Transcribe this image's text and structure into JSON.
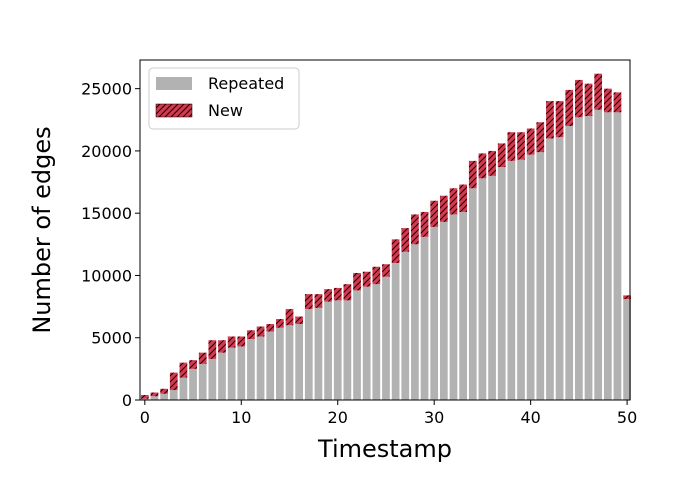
{
  "chart_data": {
    "type": "bar",
    "stacked": true,
    "xlabel": "Timestamp",
    "ylabel": "Number of edges",
    "xlim": [
      -0.5,
      50.3
    ],
    "ylim": [
      0,
      27300
    ],
    "xticks": [
      0,
      10,
      20,
      30,
      40,
      50
    ],
    "yticks": [
      0,
      5000,
      10000,
      15000,
      20000,
      25000
    ],
    "legend": {
      "position": "top-left"
    },
    "colors": {
      "repeated": "#b2b2b2",
      "new": "#d6384f",
      "hatch": "#000000"
    },
    "x": [
      0,
      1,
      2,
      3,
      4,
      5,
      6,
      7,
      8,
      9,
      10,
      11,
      12,
      13,
      14,
      15,
      16,
      17,
      18,
      19,
      20,
      21,
      22,
      23,
      24,
      25,
      26,
      27,
      28,
      29,
      30,
      31,
      32,
      33,
      34,
      35,
      36,
      37,
      38,
      39,
      40,
      41,
      42,
      43,
      44,
      45,
      46,
      47,
      48,
      49,
      50
    ],
    "series": [
      {
        "name": "Repeated",
        "values": [
          100,
          300,
          500,
          800,
          1800,
          2500,
          2900,
          3300,
          3800,
          4200,
          4300,
          4900,
          5100,
          5500,
          5800,
          6000,
          6100,
          7300,
          7400,
          7900,
          8000,
          8000,
          8800,
          9100,
          9300,
          9900,
          11000,
          11900,
          12500,
          13100,
          13900,
          14300,
          14900,
          15100,
          17000,
          17800,
          18000,
          18700,
          19200,
          19300,
          19700,
          19900,
          21000,
          21100,
          22000,
          22700,
          22800,
          23300,
          23100,
          23100,
          8100
        ]
      },
      {
        "name": "New",
        "values": [
          300,
          300,
          400,
          1400,
          1200,
          700,
          900,
          1500,
          1000,
          900,
          800,
          700,
          800,
          600,
          700,
          1300,
          600,
          1200,
          1100,
          1000,
          1000,
          1300,
          1400,
          1200,
          1400,
          1000,
          1900,
          1900,
          2400,
          2000,
          2100,
          2100,
          2100,
          2200,
          2200,
          2000,
          2000,
          1900,
          2300,
          2200,
          2100,
          2400,
          3000,
          2900,
          2900,
          3000,
          2600,
          2900,
          1900,
          1600,
          300
        ]
      }
    ]
  }
}
